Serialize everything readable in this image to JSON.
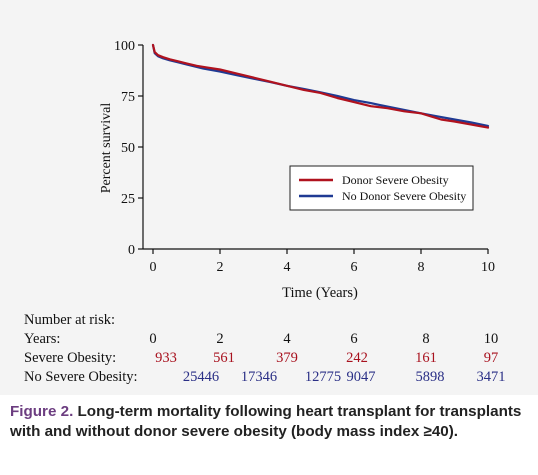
{
  "chart_data": {
    "type": "line",
    "title": "",
    "xlabel": "Time (Years)",
    "ylabel": "Percent survival",
    "xlim": [
      0,
      10
    ],
    "ylim": [
      0,
      100
    ],
    "xticks": [
      0,
      2,
      4,
      6,
      8,
      10
    ],
    "yticks": [
      0,
      25,
      50,
      75,
      100
    ],
    "grid": false,
    "legend_position": "center-right",
    "series": [
      {
        "name": "Donor Severe Obesity",
        "color": "#b0121e",
        "x": [
          0,
          0.05,
          0.15,
          0.3,
          0.5,
          0.75,
          1.0,
          1.3,
          1.6,
          2.0,
          2.5,
          3.0,
          3.5,
          4.0,
          4.5,
          5.0,
          5.5,
          6.0,
          6.5,
          7.0,
          7.5,
          8.0,
          8.3,
          8.6,
          9.0,
          9.5,
          10.0
        ],
        "y": [
          100,
          96.5,
          95.0,
          94.0,
          93.0,
          92.0,
          91.0,
          89.8,
          89.0,
          88.0,
          86.0,
          84.0,
          82.0,
          80.0,
          78.0,
          76.5,
          74.0,
          72.0,
          70.0,
          69.0,
          67.5,
          66.5,
          65.0,
          63.5,
          62.5,
          61.0,
          59.5
        ]
      },
      {
        "name": "No Donor Severe Obesity",
        "color": "#1f3a93",
        "x": [
          0,
          0.05,
          0.15,
          0.3,
          0.5,
          0.75,
          1.0,
          1.5,
          2.0,
          2.5,
          3.0,
          3.5,
          4.0,
          4.5,
          5.0,
          5.5,
          6.0,
          6.5,
          7.0,
          7.5,
          8.0,
          8.5,
          9.0,
          9.5,
          10.0
        ],
        "y": [
          100,
          96.0,
          94.5,
          93.5,
          92.5,
          91.5,
          90.5,
          88.5,
          87.0,
          85.2,
          83.5,
          81.8,
          80.0,
          78.5,
          76.8,
          75.0,
          73.0,
          71.5,
          69.8,
          68.2,
          66.5,
          65.0,
          63.5,
          62.0,
          60.3
        ]
      }
    ]
  },
  "risk_table": {
    "header": "Number at risk:",
    "years_label": "Years:",
    "years": [
      "0",
      "2",
      "4",
      "6",
      "8",
      "10"
    ],
    "rows": [
      {
        "label": "Severe Obesity:",
        "values": [
          "933",
          "561",
          "379",
          "242",
          "161",
          "97"
        ]
      },
      {
        "label": "No Severe Obesity:",
        "values": [
          "25446",
          "17346",
          "12775",
          "9047",
          "5898",
          "3471"
        ]
      }
    ]
  },
  "caption": {
    "figure_label": "Figure 2.",
    "text": " Long-term mortality following heart transplant for transplants with and without donor severe obesity (body mass index ≥40)."
  }
}
